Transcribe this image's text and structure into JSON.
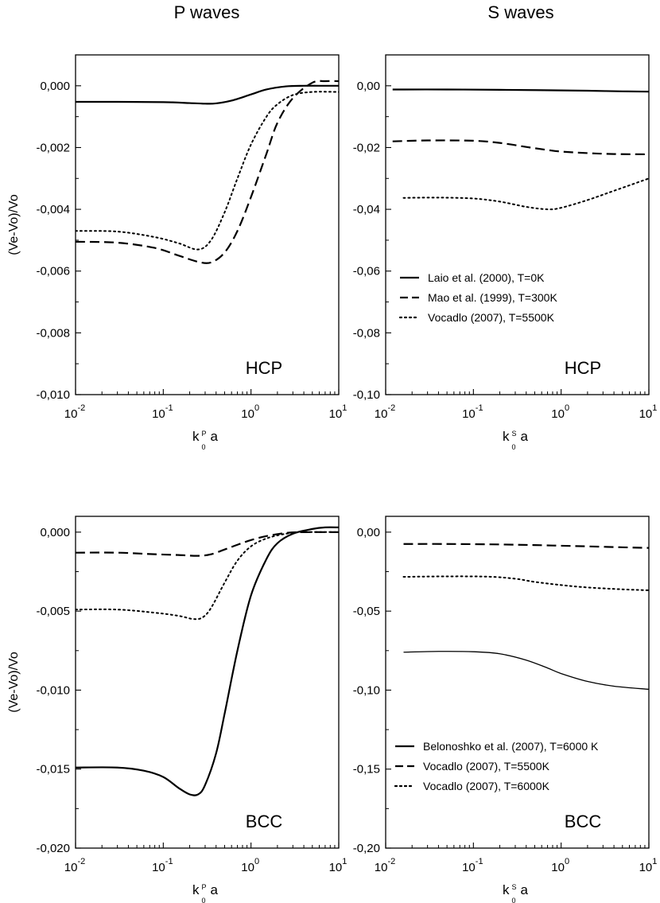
{
  "figure": {
    "column_titles": [
      "P waves",
      "S waves"
    ],
    "ylabel": "(Ve-Vo)/Vo"
  },
  "chart_data": [
    {
      "type": "line",
      "id": "p-hcp",
      "column": "P waves",
      "structure_label": "HCP",
      "xlabel": {
        "k": "k",
        "sup": "P",
        "sub": "0",
        "suffix": "a"
      },
      "ylabel": "(Ve-Vo)/Vo",
      "xscale": "log",
      "xlim": [
        0.01,
        10
      ],
      "ylim": [
        -0.01,
        0.001
      ],
      "xticks": [
        0.01,
        0.1,
        1,
        10
      ],
      "xtick_labels": [
        {
          "base": "10",
          "exp": "-2"
        },
        {
          "base": "10",
          "exp": "-1"
        },
        {
          "base": "10",
          "exp": "0"
        },
        {
          "base": "10",
          "exp": "1"
        }
      ],
      "yticks": [
        0.0,
        -0.002,
        -0.004,
        -0.006,
        -0.008,
        -0.01
      ],
      "ytick_labels": [
        "0,000",
        "-0,002",
        "-0,004",
        "-0,006",
        "-0,008",
        "-0,010"
      ],
      "series": [
        {
          "name": "Laio et al. (2000), T=0K",
          "style": "solid",
          "width": 2.2,
          "x": [
            0.01,
            0.03,
            0.1,
            0.2,
            0.3,
            0.4,
            0.6,
            1.0,
            1.5,
            2.5,
            4,
            7,
            10
          ],
          "y": [
            -0.00052,
            -0.00052,
            -0.00053,
            -0.00056,
            -0.00058,
            -0.00057,
            -0.00048,
            -0.00028,
            -0.00012,
            -2e-05,
            0.0,
            0.0,
            0.0
          ]
        },
        {
          "name": "Mao et al. (1999), T=300K",
          "style": "dash",
          "width": 2.2,
          "x": [
            0.01,
            0.03,
            0.08,
            0.15,
            0.25,
            0.35,
            0.5,
            0.7,
            1.0,
            1.5,
            2.0,
            3.0,
            5.0,
            7.0,
            10
          ],
          "y": [
            -0.00505,
            -0.00508,
            -0.00525,
            -0.0055,
            -0.0057,
            -0.00572,
            -0.0054,
            -0.0047,
            -0.0036,
            -0.0022,
            -0.0012,
            -0.0004,
            0.0001,
            0.00015,
            0.00015
          ]
        },
        {
          "name": "Vocadlo (2007), T=5500K",
          "style": "dot",
          "width": 2.0,
          "x": [
            0.01,
            0.03,
            0.08,
            0.15,
            0.25,
            0.35,
            0.5,
            0.7,
            1.0,
            1.5,
            2.0,
            3.0,
            5.0,
            10
          ],
          "y": [
            -0.0047,
            -0.00472,
            -0.0049,
            -0.0051,
            -0.0053,
            -0.005,
            -0.0041,
            -0.003,
            -0.0019,
            -0.001,
            -0.0006,
            -0.0003,
            -0.0002,
            -0.0002
          ]
        }
      ]
    },
    {
      "type": "line",
      "id": "s-hcp",
      "column": "S waves",
      "structure_label": "HCP",
      "xlabel": {
        "k": "k",
        "sup": "S",
        "sub": "0",
        "suffix": "a"
      },
      "ylabel": "",
      "xscale": "log",
      "xlim": [
        0.01,
        10
      ],
      "ylim": [
        -0.1,
        0.01
      ],
      "xticks": [
        0.01,
        0.1,
        1,
        10
      ],
      "xtick_labels": [
        {
          "base": "10",
          "exp": "-2"
        },
        {
          "base": "10",
          "exp": "-1"
        },
        {
          "base": "10",
          "exp": "0"
        },
        {
          "base": "10",
          "exp": "1"
        }
      ],
      "yticks": [
        0.0,
        -0.02,
        -0.04,
        -0.06,
        -0.08,
        -0.1
      ],
      "ytick_labels": [
        "0,00",
        "-0,02",
        "-0,04",
        "-0,06",
        "-0,08",
        "-0,10"
      ],
      "legend": {
        "position": "middle-center",
        "entries": [
          {
            "label": "Laio et al. (2000), T=0K",
            "style": "solid"
          },
          {
            "label": "Mao et al. (1999), T=300K",
            "style": "dash"
          },
          {
            "label": "Vocadlo (2007), T=5500K",
            "style": "dot"
          }
        ]
      },
      "series": [
        {
          "name": "Laio et al. (2000), T=0K",
          "style": "solid",
          "width": 2.2,
          "x": [
            0.012,
            0.05,
            0.2,
            0.5,
            1.0,
            2.0,
            5.0,
            10
          ],
          "y": [
            -0.0012,
            -0.0012,
            -0.0013,
            -0.0014,
            -0.0015,
            -0.0016,
            -0.0018,
            -0.0019
          ]
        },
        {
          "name": "Mao et al. (1999), T=300K",
          "style": "dash",
          "width": 2.2,
          "x": [
            0.012,
            0.03,
            0.1,
            0.2,
            0.4,
            0.7,
            1.0,
            2.0,
            4.0,
            10
          ],
          "y": [
            -0.018,
            -0.0177,
            -0.0178,
            -0.0185,
            -0.0198,
            -0.0208,
            -0.0213,
            -0.0218,
            -0.0221,
            -0.0222
          ]
        },
        {
          "name": "Vocadlo (2007), T=5500K",
          "style": "dot",
          "width": 2.0,
          "x": [
            0.016,
            0.04,
            0.1,
            0.2,
            0.4,
            0.7,
            1.0,
            2.0,
            4.0,
            10
          ],
          "y": [
            -0.0363,
            -0.0362,
            -0.0365,
            -0.0375,
            -0.0392,
            -0.04,
            -0.0395,
            -0.037,
            -0.034,
            -0.03
          ]
        }
      ]
    },
    {
      "type": "line",
      "id": "p-bcc",
      "column": "P waves",
      "structure_label": "BCC",
      "xlabel": {
        "k": "k",
        "sup": "P",
        "sub": "0",
        "suffix": "a"
      },
      "ylabel": "(Ve-Vo)/Vo",
      "xscale": "log",
      "xlim": [
        0.01,
        10
      ],
      "ylim": [
        -0.02,
        0.001
      ],
      "xticks": [
        0.01,
        0.1,
        1,
        10
      ],
      "xtick_labels": [
        {
          "base": "10",
          "exp": "-2"
        },
        {
          "base": "10",
          "exp": "-1"
        },
        {
          "base": "10",
          "exp": "0"
        },
        {
          "base": "10",
          "exp": "1"
        }
      ],
      "yticks": [
        0.0,
        -0.005,
        -0.01,
        -0.015,
        -0.02
      ],
      "ytick_labels": [
        "0,000",
        "-0,005",
        "-0,010",
        "-0,015",
        "-0,020"
      ],
      "series": [
        {
          "name": "Belonoshko et al. (2007), T=6000 K",
          "style": "solid",
          "width": 2.2,
          "x": [
            0.01,
            0.03,
            0.06,
            0.1,
            0.15,
            0.2,
            0.25,
            0.3,
            0.4,
            0.5,
            0.7,
            1.0,
            1.5,
            2.0,
            3.0,
            5.0,
            7.0,
            10
          ],
          "y": [
            -0.0149,
            -0.0149,
            -0.0151,
            -0.0155,
            -0.0162,
            -0.0166,
            -0.0166,
            -0.016,
            -0.014,
            -0.0115,
            -0.0075,
            -0.004,
            -0.0017,
            -0.0007,
            -0.0001,
            0.0002,
            0.0003,
            0.0003
          ]
        },
        {
          "name": "Vocadlo (2007), T=5500K",
          "style": "dash",
          "width": 2.2,
          "x": [
            0.01,
            0.03,
            0.08,
            0.15,
            0.25,
            0.35,
            0.5,
            0.7,
            1.0,
            1.5,
            2.5,
            4.0,
            10
          ],
          "y": [
            -0.0013,
            -0.0013,
            -0.0014,
            -0.00145,
            -0.0015,
            -0.0014,
            -0.0011,
            -0.0008,
            -0.0005,
            -0.00025,
            -5e-05,
            0.0,
            0.0
          ]
        },
        {
          "name": "Vocadlo (2007), T=6000K",
          "style": "dot",
          "width": 2.0,
          "x": [
            0.01,
            0.03,
            0.08,
            0.15,
            0.22,
            0.28,
            0.35,
            0.5,
            0.7,
            1.0,
            1.5,
            2.5,
            4.0,
            10
          ],
          "y": [
            -0.0049,
            -0.0049,
            -0.0051,
            -0.0053,
            -0.0055,
            -0.0054,
            -0.0048,
            -0.0032,
            -0.0018,
            -0.0009,
            -0.0004,
            -0.0001,
            0.0,
            0.0
          ]
        }
      ]
    },
    {
      "type": "line",
      "id": "s-bcc",
      "column": "S waves",
      "structure_label": "BCC",
      "xlabel": {
        "k": "k",
        "sup": "S",
        "sub": "0",
        "suffix": "a"
      },
      "ylabel": "",
      "xscale": "log",
      "xlim": [
        0.01,
        10
      ],
      "ylim": [
        -0.2,
        0.01
      ],
      "xticks": [
        0.01,
        0.1,
        1,
        10
      ],
      "xtick_labels": [
        {
          "base": "10",
          "exp": "-2"
        },
        {
          "base": "10",
          "exp": "-1"
        },
        {
          "base": "10",
          "exp": "0"
        },
        {
          "base": "10",
          "exp": "1"
        }
      ],
      "yticks": [
        0.0,
        -0.05,
        -0.1,
        -0.15,
        -0.2
      ],
      "ytick_labels": [
        "0,00",
        "-0,05",
        "-0,10",
        "-0,15",
        "-0,20"
      ],
      "legend": {
        "position": "bottom-left",
        "entries": [
          {
            "label": "Belonoshko et al. (2007), T=6000 K",
            "style": "solid"
          },
          {
            "label": "Vocadlo (2007), T=5500K",
            "style": "dash"
          },
          {
            "label": "Vocadlo (2007), T=6000K",
            "style": "dot"
          }
        ]
      },
      "series": [
        {
          "name": "Belonoshko et al. (2007), T=6000 K",
          "style": "solid",
          "width": 1.3,
          "x": [
            0.016,
            0.04,
            0.1,
            0.2,
            0.4,
            0.7,
            1.0,
            2.0,
            4.0,
            10
          ],
          "y": [
            -0.076,
            -0.0755,
            -0.0757,
            -0.077,
            -0.081,
            -0.086,
            -0.0895,
            -0.0945,
            -0.0975,
            -0.0995
          ]
        },
        {
          "name": "Vocadlo (2007), T=5500K",
          "style": "dash",
          "width": 2.2,
          "x": [
            0.016,
            0.05,
            0.2,
            0.5,
            1.0,
            2.0,
            5.0,
            10
          ],
          "y": [
            -0.0075,
            -0.0075,
            -0.0078,
            -0.0082,
            -0.0086,
            -0.009,
            -0.0096,
            -0.01
          ]
        },
        {
          "name": "Vocadlo (2007), T=6000K",
          "style": "dot",
          "width": 2.0,
          "x": [
            0.016,
            0.05,
            0.15,
            0.3,
            0.5,
            1.0,
            2.0,
            5.0,
            10
          ],
          "y": [
            -0.0283,
            -0.028,
            -0.0282,
            -0.0295,
            -0.0315,
            -0.0335,
            -0.035,
            -0.0362,
            -0.0368
          ]
        }
      ]
    }
  ]
}
